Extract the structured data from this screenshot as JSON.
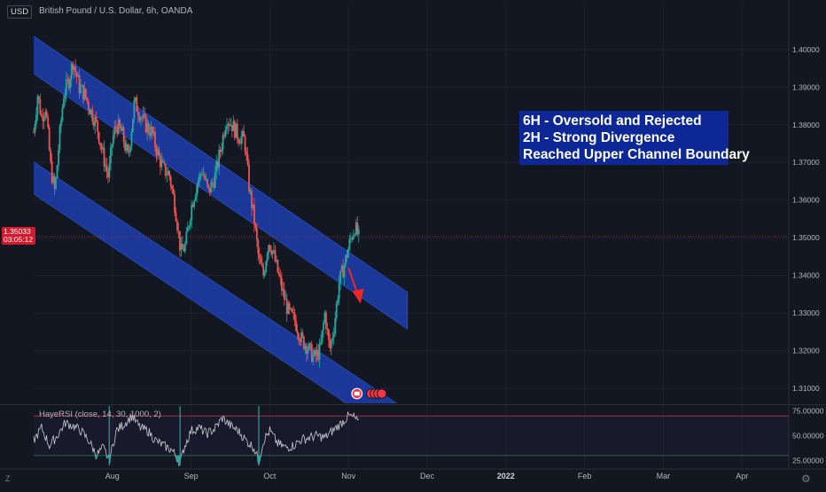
{
  "header": {
    "currency": "USD",
    "title": "British Pound / U.S. Dollar, 6h, OANDA"
  },
  "price_tag": {
    "price": "1.35033",
    "countdown": "03:05:12"
  },
  "annotation": {
    "line1": "6H - Oversold and Rejected",
    "line2": "2H - Strong Divergence",
    "line3": "Reached Upper Channel Boundary"
  },
  "indicator": {
    "label": "HayeRSI (close, 14, 30, 1000, 2)"
  },
  "footer": {
    "z_label": "Z",
    "gear_icon": "gear-icon"
  },
  "colors": {
    "background": "#131722",
    "channel": "#1c3ea8",
    "up_candle": "#26a69a",
    "down_candle": "#ef5350",
    "arrow": "#ef2626",
    "annotation_bg": "#0d2896"
  },
  "chart_data": [
    {
      "type": "candlestick",
      "title": "British Pound / U.S. Dollar, 6h, OANDA",
      "ylim": [
        1.306,
        1.4075
      ],
      "yticks": [
        "1.40000",
        "1.39000",
        "1.38000",
        "1.37000",
        "1.36000",
        "1.35000",
        "1.34000",
        "1.33000",
        "1.32000",
        "1.31000"
      ],
      "ytick_values": [
        1.4,
        1.39,
        1.38,
        1.37,
        1.36,
        1.35,
        1.34,
        1.33,
        1.32,
        1.31
      ],
      "xticks": [
        "Aug",
        "Sep",
        "Oct",
        "Nov",
        "Dec",
        "2022",
        "Feb",
        "Mar",
        "Apr"
      ],
      "xtick_index": [
        1,
        2,
        3,
        4,
        5,
        6,
        7,
        8,
        9
      ],
      "last_price": 1.35033,
      "path": [
        {
          "t": 0.0,
          "p": 1.378
        },
        {
          "t": 0.05,
          "p": 1.388
        },
        {
          "t": 0.1,
          "p": 1.382
        },
        {
          "t": 0.15,
          "p": 1.385
        },
        {
          "t": 0.22,
          "p": 1.368
        },
        {
          "t": 0.27,
          "p": 1.362
        },
        {
          "t": 0.32,
          "p": 1.375
        },
        {
          "t": 0.38,
          "p": 1.388
        },
        {
          "t": 0.45,
          "p": 1.392
        },
        {
          "t": 0.5,
          "p": 1.397
        },
        {
          "t": 0.58,
          "p": 1.39
        },
        {
          "t": 0.65,
          "p": 1.388
        },
        {
          "t": 0.72,
          "p": 1.384
        },
        {
          "t": 0.8,
          "p": 1.38
        },
        {
          "t": 0.88,
          "p": 1.372
        },
        {
          "t": 0.95,
          "p": 1.366
        },
        {
          "t": 1.0,
          "p": 1.376
        },
        {
          "t": 1.05,
          "p": 1.38
        },
        {
          "t": 1.12,
          "p": 1.378
        },
        {
          "t": 1.2,
          "p": 1.371
        },
        {
          "t": 1.28,
          "p": 1.386
        },
        {
          "t": 1.35,
          "p": 1.383
        },
        {
          "t": 1.42,
          "p": 1.38
        },
        {
          "t": 1.5,
          "p": 1.378
        },
        {
          "t": 1.58,
          "p": 1.372
        },
        {
          "t": 1.65,
          "p": 1.368
        },
        {
          "t": 1.72,
          "p": 1.367
        },
        {
          "t": 1.8,
          "p": 1.358
        },
        {
          "t": 1.87,
          "p": 1.346
        },
        {
          "t": 1.93,
          "p": 1.348
        },
        {
          "t": 2.0,
          "p": 1.358
        },
        {
          "t": 2.07,
          "p": 1.364
        },
        {
          "t": 2.14,
          "p": 1.368
        },
        {
          "t": 2.22,
          "p": 1.362
        },
        {
          "t": 2.3,
          "p": 1.366
        },
        {
          "t": 2.38,
          "p": 1.374
        },
        {
          "t": 2.45,
          "p": 1.382
        },
        {
          "t": 2.52,
          "p": 1.38
        },
        {
          "t": 2.6,
          "p": 1.377
        },
        {
          "t": 2.68,
          "p": 1.376
        },
        {
          "t": 2.74,
          "p": 1.363
        },
        {
          "t": 2.8,
          "p": 1.355
        },
        {
          "t": 2.86,
          "p": 1.344
        },
        {
          "t": 2.92,
          "p": 1.34
        },
        {
          "t": 2.98,
          "p": 1.349
        },
        {
          "t": 3.03,
          "p": 1.347
        },
        {
          "t": 3.1,
          "p": 1.341
        },
        {
          "t": 3.17,
          "p": 1.335
        },
        {
          "t": 3.24,
          "p": 1.33
        },
        {
          "t": 3.32,
          "p": 1.328
        },
        {
          "t": 3.4,
          "p": 1.323
        },
        {
          "t": 3.48,
          "p": 1.321
        },
        {
          "t": 3.56,
          "p": 1.318
        },
        {
          "t": 3.64,
          "p": 1.32
        },
        {
          "t": 3.7,
          "p": 1.33
        },
        {
          "t": 3.76,
          "p": 1.32
        },
        {
          "t": 3.82,
          "p": 1.327
        },
        {
          "t": 3.88,
          "p": 1.338
        },
        {
          "t": 3.95,
          "p": 1.343
        },
        {
          "t": 4.02,
          "p": 1.349
        },
        {
          "t": 4.08,
          "p": 1.353
        },
        {
          "t": 4.13,
          "p": 1.35
        }
      ],
      "channels": [
        {
          "name": "upper",
          "top": [
            [
              -0.1,
              1.405
            ],
            [
              4.75,
              1.3355
            ]
          ],
          "bottom": [
            [
              -0.1,
              1.395
            ],
            [
              4.75,
              1.3257
            ]
          ]
        },
        {
          "name": "lower",
          "top": [
            [
              -0.1,
              1.3715
            ],
            [
              4.9,
              1.302
            ]
          ],
          "bottom": [
            [
              -0.1,
              1.363
            ],
            [
              4.9,
              1.293
            ]
          ]
        }
      ],
      "arrow": {
        "from": [
          4.0,
          1.342
        ],
        "to": [
          4.14,
          1.3325
        ]
      }
    },
    {
      "type": "line",
      "title": "HayeRSI (close, 14, 30, 1000, 2)",
      "ylim": [
        20,
        80
      ],
      "yticks": [
        "75.00000",
        "50.00000",
        "25.00000"
      ],
      "ytick_values": [
        75,
        50,
        25
      ],
      "levels": [
        70,
        30
      ],
      "path": [
        {
          "t": 0.0,
          "v": 45
        },
        {
          "t": 0.1,
          "v": 58
        },
        {
          "t": 0.2,
          "v": 40
        },
        {
          "t": 0.3,
          "v": 50
        },
        {
          "t": 0.4,
          "v": 63
        },
        {
          "t": 0.5,
          "v": 60
        },
        {
          "t": 0.6,
          "v": 55
        },
        {
          "t": 0.7,
          "v": 45
        },
        {
          "t": 0.8,
          "v": 30
        },
        {
          "t": 0.88,
          "v": 38
        },
        {
          "t": 0.96,
          "v": 25
        },
        {
          "t": 1.05,
          "v": 55
        },
        {
          "t": 1.15,
          "v": 62
        },
        {
          "t": 1.25,
          "v": 70
        },
        {
          "t": 1.35,
          "v": 58
        },
        {
          "t": 1.45,
          "v": 55
        },
        {
          "t": 1.55,
          "v": 45
        },
        {
          "t": 1.65,
          "v": 40
        },
        {
          "t": 1.75,
          "v": 36
        },
        {
          "t": 1.82,
          "v": 28
        },
        {
          "t": 1.86,
          "v": 22
        },
        {
          "t": 1.92,
          "v": 40
        },
        {
          "t": 2.0,
          "v": 55
        },
        {
          "t": 2.1,
          "v": 58
        },
        {
          "t": 2.2,
          "v": 52
        },
        {
          "t": 2.3,
          "v": 57
        },
        {
          "t": 2.4,
          "v": 68
        },
        {
          "t": 2.5,
          "v": 60
        },
        {
          "t": 2.6,
          "v": 55
        },
        {
          "t": 2.7,
          "v": 45
        },
        {
          "t": 2.8,
          "v": 38
        },
        {
          "t": 2.86,
          "v": 24
        },
        {
          "t": 2.92,
          "v": 45
        },
        {
          "t": 3.0,
          "v": 55
        },
        {
          "t": 3.1,
          "v": 42
        },
        {
          "t": 3.2,
          "v": 38
        },
        {
          "t": 3.3,
          "v": 40
        },
        {
          "t": 3.4,
          "v": 46
        },
        {
          "t": 3.5,
          "v": 48
        },
        {
          "t": 3.6,
          "v": 50
        },
        {
          "t": 3.7,
          "v": 48
        },
        {
          "t": 3.8,
          "v": 55
        },
        {
          "t": 3.9,
          "v": 62
        },
        {
          "t": 4.0,
          "v": 70
        },
        {
          "t": 4.08,
          "v": 68
        },
        {
          "t": 4.13,
          "v": 62
        }
      ]
    }
  ]
}
